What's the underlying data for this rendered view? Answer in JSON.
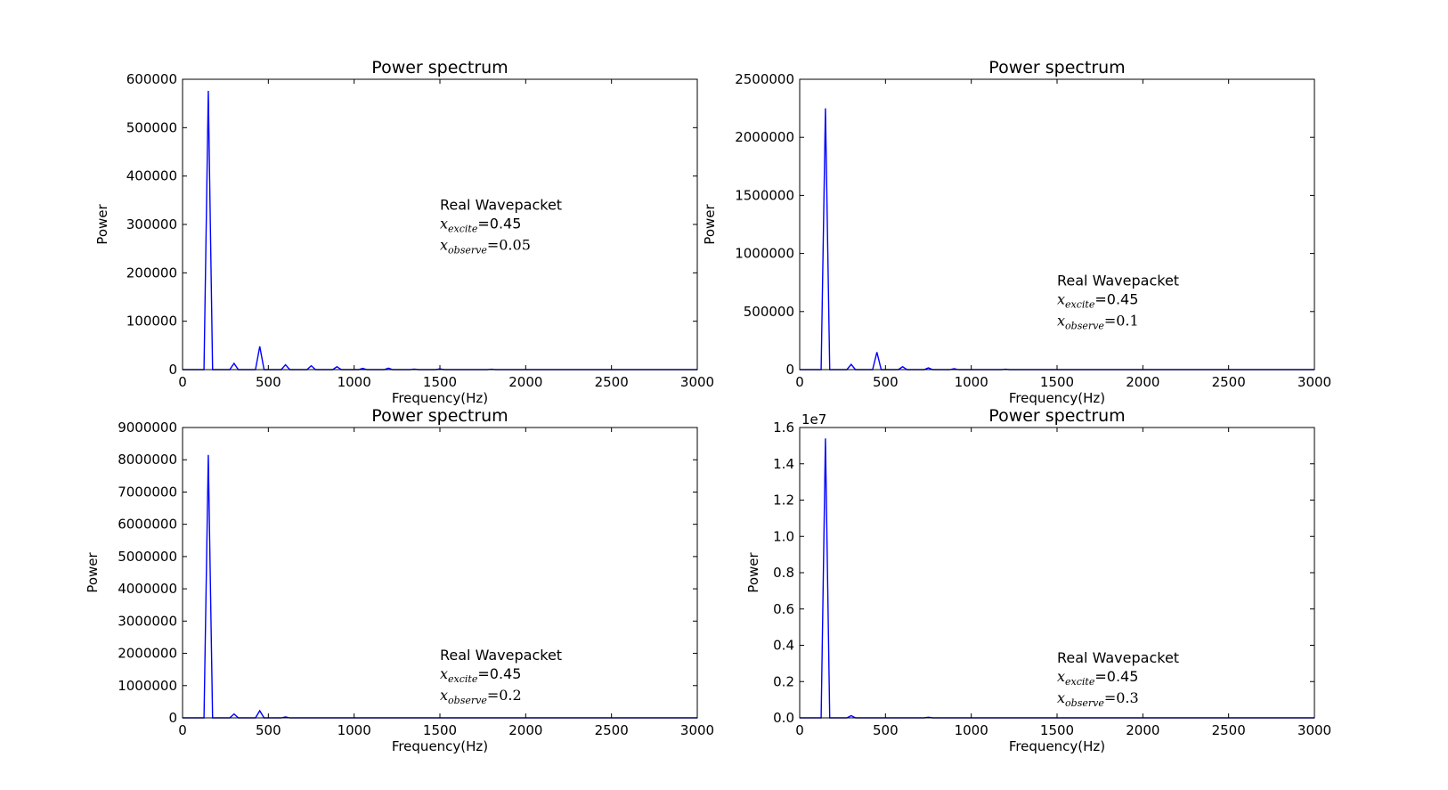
{
  "chart_data": [
    {
      "type": "line",
      "title": "Power spectrum",
      "xlabel": "Frequency(Hz)",
      "ylabel": "Power",
      "xlim": [
        0,
        3000
      ],
      "ylim": [
        0,
        600000
      ],
      "xticks": [
        "0",
        "500",
        "1000",
        "1500",
        "2000",
        "2500",
        "3000"
      ],
      "yticks": [
        "0",
        "100000",
        "200000",
        "300000",
        "400000",
        "500000",
        "600000"
      ],
      "offset_label": "",
      "line_color": "#0000ff",
      "x": [
        0,
        125,
        150,
        175,
        275,
        300,
        325,
        425,
        450,
        475,
        575,
        600,
        625,
        725,
        750,
        775,
        875,
        900,
        925,
        1025,
        1050,
        1075,
        1175,
        1200,
        1225,
        1325,
        1350,
        1375,
        1475,
        1500,
        1525,
        1775,
        1800,
        1825,
        3000
      ],
      "y": [
        0,
        0,
        576000,
        0,
        0,
        13000,
        0,
        0,
        48000,
        0,
        0,
        10000,
        0,
        0,
        8000,
        0,
        0,
        6000,
        0,
        0,
        2500,
        0,
        0,
        3000,
        0,
        0,
        1000,
        0,
        0,
        1500,
        0,
        0,
        800,
        0,
        0
      ],
      "annotation": {
        "text": "Real Wavepacket",
        "excite_symbol": "x",
        "excite_sub": "excite",
        "excite_value": "=0.45",
        "observe_symbol": "x",
        "observe_sub": "observe",
        "observe_value": "=0.05",
        "position": "middle-right"
      }
    },
    {
      "type": "line",
      "title": "Power spectrum",
      "xlabel": "Frequency(Hz)",
      "ylabel": "Power",
      "xlim": [
        0,
        3000
      ],
      "ylim": [
        0,
        2500000
      ],
      "xticks": [
        "0",
        "500",
        "1000",
        "1500",
        "2000",
        "2500",
        "3000"
      ],
      "yticks": [
        "0",
        "500000",
        "1000000",
        "1500000",
        "2000000",
        "2500000"
      ],
      "offset_label": "",
      "line_color": "#0000ff",
      "x": [
        0,
        125,
        150,
        175,
        275,
        300,
        325,
        425,
        450,
        475,
        575,
        600,
        625,
        725,
        750,
        775,
        875,
        900,
        925,
        1175,
        1200,
        1225,
        3000
      ],
      "y": [
        0,
        0,
        2250000,
        0,
        0,
        45000,
        0,
        0,
        150000,
        0,
        0,
        25000,
        0,
        0,
        15000,
        0,
        0,
        8000,
        0,
        0,
        3000,
        0,
        0
      ],
      "annotation": {
        "text": "Real Wavepacket",
        "excite_symbol": "x",
        "excite_sub": "excite",
        "excite_value": "=0.45",
        "observe_symbol": "x",
        "observe_sub": "observe",
        "observe_value": "=0.1",
        "position": "lower-right"
      }
    },
    {
      "type": "line",
      "title": "Power spectrum",
      "xlabel": "Frequency(Hz)",
      "ylabel": "Power",
      "xlim": [
        0,
        3000
      ],
      "ylim": [
        0,
        9000000
      ],
      "xticks": [
        "0",
        "500",
        "1000",
        "1500",
        "2000",
        "2500",
        "3000"
      ],
      "yticks": [
        "0",
        "1000000",
        "2000000",
        "3000000",
        "4000000",
        "5000000",
        "6000000",
        "7000000",
        "8000000",
        "9000000"
      ],
      "offset_label": "",
      "line_color": "#0000ff",
      "x": [
        0,
        125,
        150,
        175,
        275,
        300,
        325,
        425,
        450,
        475,
        575,
        600,
        625,
        3000
      ],
      "y": [
        0,
        0,
        8150000,
        0,
        0,
        120000,
        0,
        0,
        220000,
        0,
        0,
        30000,
        0,
        0
      ],
      "annotation": {
        "text": "Real Wavepacket",
        "excite_symbol": "x",
        "excite_sub": "excite",
        "excite_value": "=0.45",
        "observe_symbol": "x",
        "observe_sub": "observe",
        "observe_value": "=0.2",
        "position": "lower-right"
      }
    },
    {
      "type": "line",
      "title": "Power spectrum",
      "xlabel": "Frequency(Hz)",
      "ylabel": "Power",
      "xlim": [
        0,
        3000
      ],
      "ylim": [
        0,
        1.6
      ],
      "xticks": [
        "0",
        "500",
        "1000",
        "1500",
        "2000",
        "2500",
        "3000"
      ],
      "yticks": [
        "0.0",
        "0.2",
        "0.4",
        "0.6",
        "0.8",
        "1.0",
        "1.2",
        "1.4",
        "1.6"
      ],
      "offset_label": "1e7",
      "line_color": "#0000ff",
      "x": [
        0,
        125,
        150,
        175,
        275,
        300,
        325,
        725,
        750,
        775,
        3000
      ],
      "y": [
        0,
        0,
        1.54,
        0,
        0,
        0.012,
        0,
        0,
        0.003,
        0,
        0
      ],
      "annotation": {
        "text": "Real Wavepacket",
        "excite_symbol": "x",
        "excite_sub": "excite",
        "excite_value": "=0.45",
        "observe_symbol": "x",
        "observe_sub": "observe",
        "observe_value": "=0.3",
        "position": "lower-right"
      }
    }
  ]
}
